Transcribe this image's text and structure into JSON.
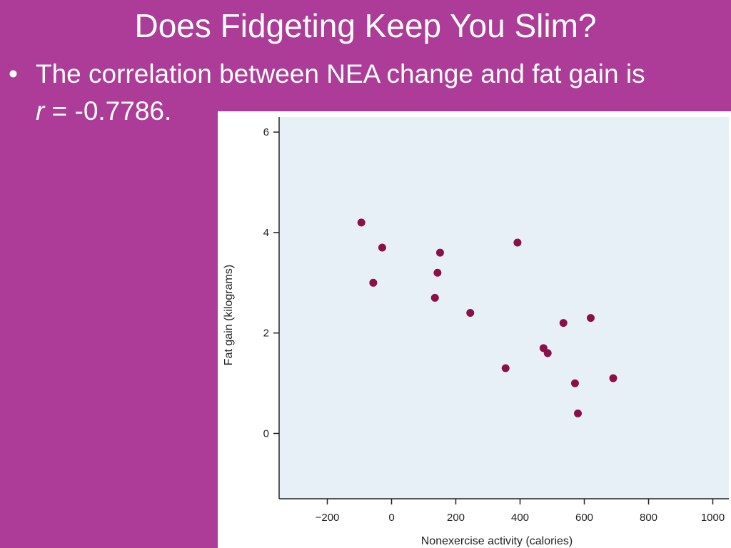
{
  "slide": {
    "title": "Does Fidgeting Keep You Slim?",
    "bullet_text": "The correlation between NEA change and fat gain is",
    "r_symbol": "r",
    "r_value_text": " = -0.7786."
  },
  "colors": {
    "slide_background": "#ac3c97",
    "plot_background": "#e8f0f7",
    "point_color": "#8b1048"
  },
  "chart_data": {
    "type": "scatter",
    "title": "",
    "xlabel": "Nonexercise activity (calories)",
    "ylabel": "Fat gain (kilograms)",
    "xlim": [
      -350,
      1050
    ],
    "ylim": [
      -1.3,
      6.3
    ],
    "x_ticks": [
      -200,
      0,
      200,
      400,
      600,
      800,
      1000
    ],
    "x_tick_labels": [
      "−200",
      "0",
      "200",
      "400",
      "600",
      "800",
      "1000"
    ],
    "y_ticks": [
      0,
      2,
      4,
      6
    ],
    "y_tick_labels": [
      "0",
      "2",
      "4",
      "6"
    ],
    "grid": false,
    "legend": "none",
    "points": [
      {
        "x": -94,
        "y": 4.2
      },
      {
        "x": -57,
        "y": 3.0
      },
      {
        "x": -29,
        "y": 3.7
      },
      {
        "x": 135,
        "y": 2.7
      },
      {
        "x": 143,
        "y": 3.2
      },
      {
        "x": 151,
        "y": 3.6
      },
      {
        "x": 245,
        "y": 2.4
      },
      {
        "x": 355,
        "y": 1.3
      },
      {
        "x": 392,
        "y": 3.8
      },
      {
        "x": 473,
        "y": 1.7
      },
      {
        "x": 486,
        "y": 1.6
      },
      {
        "x": 535,
        "y": 2.2
      },
      {
        "x": 571,
        "y": 1.0
      },
      {
        "x": 580,
        "y": 0.4
      },
      {
        "x": 620,
        "y": 2.3
      },
      {
        "x": 690,
        "y": 1.1
      }
    ]
  }
}
